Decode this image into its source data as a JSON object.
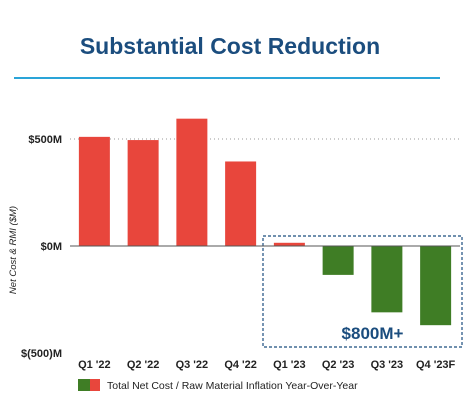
{
  "title": "Substantial Cost Reduction",
  "chart_data": {
    "type": "bar",
    "categories": [
      "Q1 '22",
      "Q2 '22",
      "Q3 '22",
      "Q4 '22",
      "Q1 '23",
      "Q2 '23",
      "Q3 '23",
      "Q4 '23F"
    ],
    "series": [
      {
        "name": "Total Net Cost / Raw Material Inflation Year-Over-Year",
        "values": [
          510,
          495,
          595,
          395,
          15,
          -135,
          -310,
          -370
        ]
      }
    ],
    "ylabel": "Net Cost & RMI  ($M)",
    "ylim": [
      -500,
      600
    ],
    "yticks": [
      {
        "value": 500,
        "label": "$500M"
      },
      {
        "value": 0,
        "label": "$0M"
      },
      {
        "value": -500,
        "label": "$(500)M"
      }
    ],
    "colors": {
      "positive": "#e8463c",
      "negative": "#3f7d25",
      "zero_line": "#555555",
      "callout_border": "#1b4d7e"
    },
    "annotation": {
      "text": "$800M+",
      "from_category": "Q1 '23",
      "to_category": "Q4 '23F"
    },
    "legend": {
      "position": "bottom",
      "label": "Total Net Cost / Raw Material Inflation Year-Over-Year"
    },
    "grid": false
  }
}
